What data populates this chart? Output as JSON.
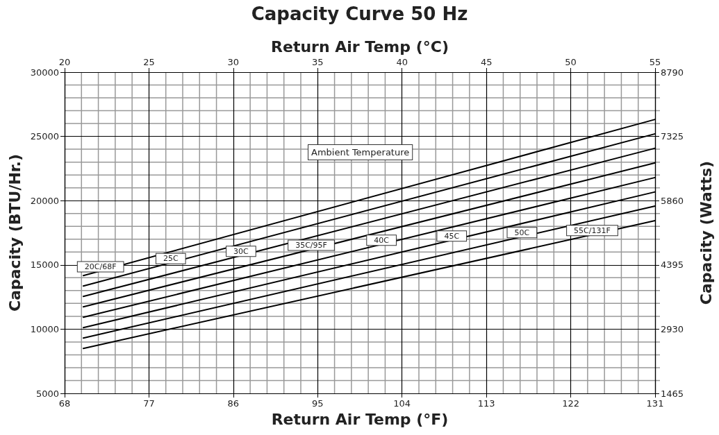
{
  "chart_data": {
    "type": "line",
    "title": "Capacity Curve 50 Hz",
    "xlabel": "Return Air Temp (°F)",
    "ylabel": "Capacity (BTU/Hr.)",
    "x2label": "Return Air Temp (°C)",
    "y2label": "Capacity (Watts)",
    "xlim": [
      68,
      131
    ],
    "xticks": [
      68,
      77,
      86,
      95,
      104,
      113,
      122,
      131
    ],
    "x2lim": [
      20,
      55
    ],
    "x2ticks": [
      20,
      25,
      30,
      35,
      40,
      45,
      50,
      55
    ],
    "ylim": [
      5000,
      30000
    ],
    "yticks": [
      5000,
      10000,
      15000,
      20000,
      25000,
      30000
    ],
    "y2lim": [
      1465,
      8790
    ],
    "y2ticks": [
      1465,
      2930,
      4395,
      5860,
      7325,
      8790
    ],
    "x": [
      70,
      131
    ],
    "grid": true,
    "legend": false,
    "marker": "none",
    "line_style": "solid",
    "annotations": [
      "Ambient Temperature"
    ],
    "series": [
      {
        "name": "20C/68F",
        "color": "#000000",
        "values": [
          14170,
          26320
        ]
      },
      {
        "name": "25C",
        "color": "#000000",
        "values": [
          13360,
          25200
        ]
      },
      {
        "name": "30C",
        "color": "#000000",
        "values": [
          12550,
          24080
        ]
      },
      {
        "name": "35C/95F",
        "color": "#000000",
        "values": [
          11740,
          22940
        ]
      },
      {
        "name": "40C",
        "color": "#000000",
        "values": [
          10930,
          21800
        ]
      },
      {
        "name": "45C",
        "color": "#000000",
        "values": [
          10120,
          20680
        ]
      },
      {
        "name": "50C",
        "color": "#000000",
        "values": [
          9310,
          19580
        ]
      },
      {
        "name": "55C/131F",
        "color": "#000000",
        "values": [
          8500,
          18440
        ]
      }
    ]
  }
}
